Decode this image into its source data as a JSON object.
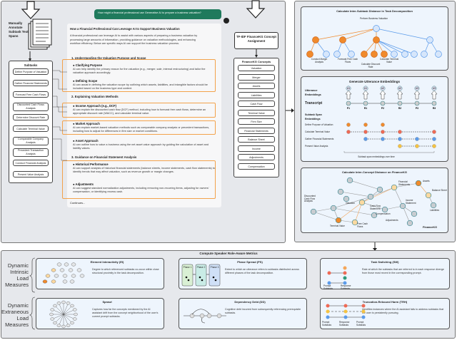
{
  "left": {
    "annotate_label": "Manually Annotate Subtask Text Spans",
    "subtasks_title": "Subtasks",
    "subtasks": [
      "Define Purpose of Valuation",
      "Gather Financial Statements",
      "Forecast Free Cash Flows",
      "Discounted Cash Flows Analysis",
      "Determine Discount Rate",
      "Calculate Terminal Value",
      "Comparable Company Analysis",
      "Precedent Transaction Analysis",
      "Conduct Financial Analysis",
      "Present Value Analysis"
    ],
    "user_prompt": "How might a financial professional use Generative AI to prepare a business valuation?",
    "response": {
      "title": "How a Financial Professional Can Leverage AI to Support Business Valuation",
      "intro": "A financial professional can leverage AI to assist with various aspects of preparing a business valuation by processing large amounts of information, providing guidance on valuation methodologies, and enhancing workflow efficiency. Below are specific ways AI can support the business valuation process.",
      "sections": [
        {
          "heading": "1. Understanding the Valuation Purpose and Scope",
          "items": [
            {
              "title": "Clarifying Purpose",
              "text": "AI can help identify the primary reason for the valuation (e.g., merger, sale, internal restructuring) and tailor the valuation approach accordingly."
            },
            {
              "title": "Defining Scope",
              "text": "AI can assist in defining the valuation scope by outlining which assets, liabilities, and intangible factors should be included based on the business type and context."
            }
          ]
        },
        {
          "heading": "2. Explaining Valuation Methods",
          "items": [
            {
              "title": "Income Approach (e.g., DCF)",
              "text": "AI can explain the discounted cash flow (DCF) method, including how to forecast free cash flows, determine an appropriate discount rate (WACC), and calculate terminal value."
            },
            {
              "title": "Market Approach",
              "text": "AI can explain market-based valuation methods such as comparable company analysis or precedent transactions, including how to adjust for differences in firm size or market conditions."
            },
            {
              "title": "Asset Approach",
              "text": "AI can outline how to value a business using the net asset value approach by guiding the calculation of asset and liability values."
            }
          ]
        },
        {
          "heading": "3. Guidance on Financial Statement Analysis",
          "items": [
            {
              "title": "Historical Performance",
              "text": "AI can support analysis of historical financial statements (balance sheets, income statements, cash flow statements) to identify trends that may affect valuation, such as revenue growth or margin changes."
            },
            {
              "title": "Adjustments",
              "text": "AI can suggest standard normalization adjustments, including removing non-recurring items, adjusting for owners' compensation, or identifying excess cash."
            }
          ]
        }
      ],
      "continue": "Continues..."
    }
  },
  "middle": {
    "tfidf_label": "TF-IDF FinanceKG Concept Assignment",
    "concepts_title": "FinanceKG Concepts",
    "concepts": [
      "Valuation",
      "Merger",
      "Assets",
      "Liabilities",
      "Cash Flow",
      "Terminal Value",
      "Firm Size",
      "Financial Statements",
      "Balance Sheet",
      "Income",
      "Adjustments",
      "Compensation"
    ]
  },
  "right": {
    "tree_title": "Calculate Inter-Subtask Distance in Task Decomposition",
    "tree_root": "Perform Business Valuation",
    "tree_labels": [
      "Conduct Margin Analysis",
      "Forecast Free Cash Flows",
      "Calculate Discount Rate",
      "Calculate Terminal Value"
    ],
    "emb_title": "Generate Utterance Embeddings",
    "emb_utt_label": "Utterance Embeddings",
    "emb_transcript": "Transcript",
    "emb_span_label": "Subtask Span Embeddings",
    "emb_turns": [
      "P1",
      "R1",
      "P2",
      "R2",
      "P3",
      "R3"
    ],
    "emb_u": [
      "U1",
      "U1",
      "U2",
      "U2",
      "U3",
      "U3"
    ],
    "emb_rows": [
      "Define Purpose of Valuation",
      "Calculate Terminal Value",
      "Gather Financial Statements",
      "Present Value Analysis"
    ],
    "emb_footer": "Subtask span embeddings over time",
    "kg_title": "Calculate Inter-Concept Distance on FinanceKG",
    "kg_labels": [
      "Financial Statements",
      "Assets",
      "Balance Sheet",
      "Liabilities",
      "Discounted Cash Flow Analysis",
      "Valuation",
      "Cash Flow Statement",
      "Compensation",
      "Income Statement",
      "Free Cash Flows",
      "Adjustments",
      "Terminal Value"
    ],
    "kg_footer": "FinanceKG"
  },
  "bottom": {
    "title": "Compute Speaker Role-Aware Metrics",
    "intrinsic_label": "Dynamic Intrinsic Load Measures",
    "extraneous_label": "Dynamic Extraneous Load Measures",
    "metrics": [
      {
        "title": "Element Interactivity (EI)",
        "desc": "Degree to which referenced subtasks co-occur within close structural proximity in the task decomposition."
      },
      {
        "title": "Phase Spread (PS)",
        "desc": "Extent to which an utterance refers to subtasks distributed across different phases of the task decomposition.",
        "phases": [
          "Phase 1",
          "Phase 2",
          "Phase 3"
        ]
      },
      {
        "title": "Task Switching (SW)",
        "desc": "Rate at which the subtasks that are referred to in each response diverge from those most recent in the corresponding prompt.",
        "labels": [
          "Prompt Subtasks",
          "Response Subtasks"
        ]
      },
      {
        "title": "Sprawl",
        "desc": "Captures how far the concepts mentioned by the AI assistant drift from the concept neighborhood of the user's current prompt subtasks."
      },
      {
        "title": "Dependency Debt (DD)",
        "desc": "Cognitive debt incurred from subsequently referencing prerequisite subtasks."
      },
      {
        "title": "Truncation-Rebound Harm (TRH)",
        "desc": "Identifies instances where the AI assistant fails to address subtasks that the user is persistently pursuing.",
        "labels": [
          "Prompt Subtasks",
          "Response Subtasks",
          "Prompt Subtasks"
        ]
      }
    ]
  },
  "colors": {
    "orange": "#f08a2c",
    "light_orange": "#fcd9a0",
    "blue": "#5b9bea",
    "light_blue": "#d6e6fb",
    "green_bubble": "#1f7a5c",
    "panel": "#e6e8ec"
  }
}
